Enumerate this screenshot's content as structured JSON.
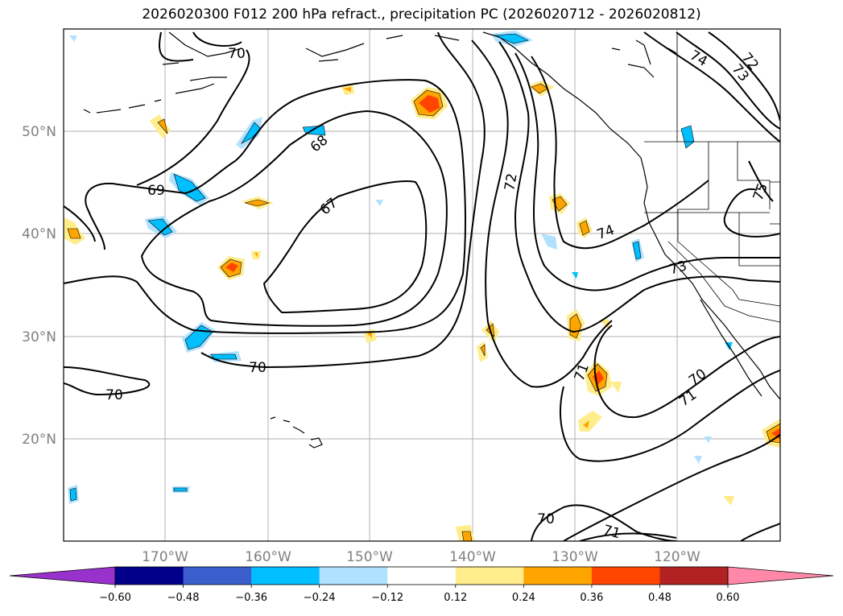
{
  "title": "2026020300 F012 200 hPa refract., precipitation PC (2026020712 - 2026020812)",
  "map": {
    "lat_labels": [
      "50°N",
      "40°N",
      "30°N",
      "20°N"
    ],
    "lon_labels": [
      "170°W",
      "160°W",
      "150°W",
      "140°W",
      "130°W",
      "120°W"
    ],
    "contour_labels": [
      "70",
      "69",
      "68",
      "67",
      "72",
      "74",
      "73",
      "74",
      "73",
      "72",
      "75",
      "70",
      "70",
      "71",
      "70",
      "71",
      "70",
      "71"
    ]
  },
  "colorbar": {
    "ticks": [
      "−0.60",
      "−0.48",
      "−0.36",
      "−0.24",
      "−0.12",
      "0.12",
      "0.24",
      "0.36",
      "0.48",
      "0.60"
    ],
    "colors": [
      "#9932cc",
      "#00008b",
      "#3a5fcd",
      "#00bfff",
      "#b0e2ff",
      "#ffffff",
      "#ffec8b",
      "#ffa500",
      "#ff4500",
      "#b22222",
      "#ff88a8"
    ]
  }
}
